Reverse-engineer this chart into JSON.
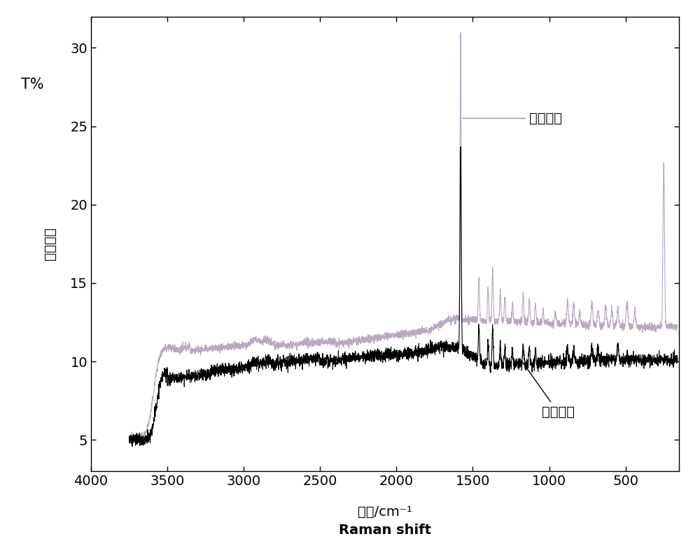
{
  "title": "",
  "xlabel_cn": "波数/cm⁻¹",
  "xlabel_en": "Raman shift",
  "ylabel_line1": "T%",
  "ylabel_line2": "信号强度",
  "label_synthetic": "合成靖蓝",
  "label_natural": "天然靖蓝",
  "xlim": [
    4000,
    150
  ],
  "ylim": [
    3,
    32
  ],
  "yticks": [
    5,
    10,
    15,
    20,
    25,
    30
  ],
  "xticks": [
    4000,
    3500,
    3000,
    2500,
    2000,
    1500,
    1000,
    500
  ],
  "color_synthetic": "#b8a8c0",
  "color_natural": "#000000",
  "bg_color": "#ffffff",
  "linewidth": 0.8
}
